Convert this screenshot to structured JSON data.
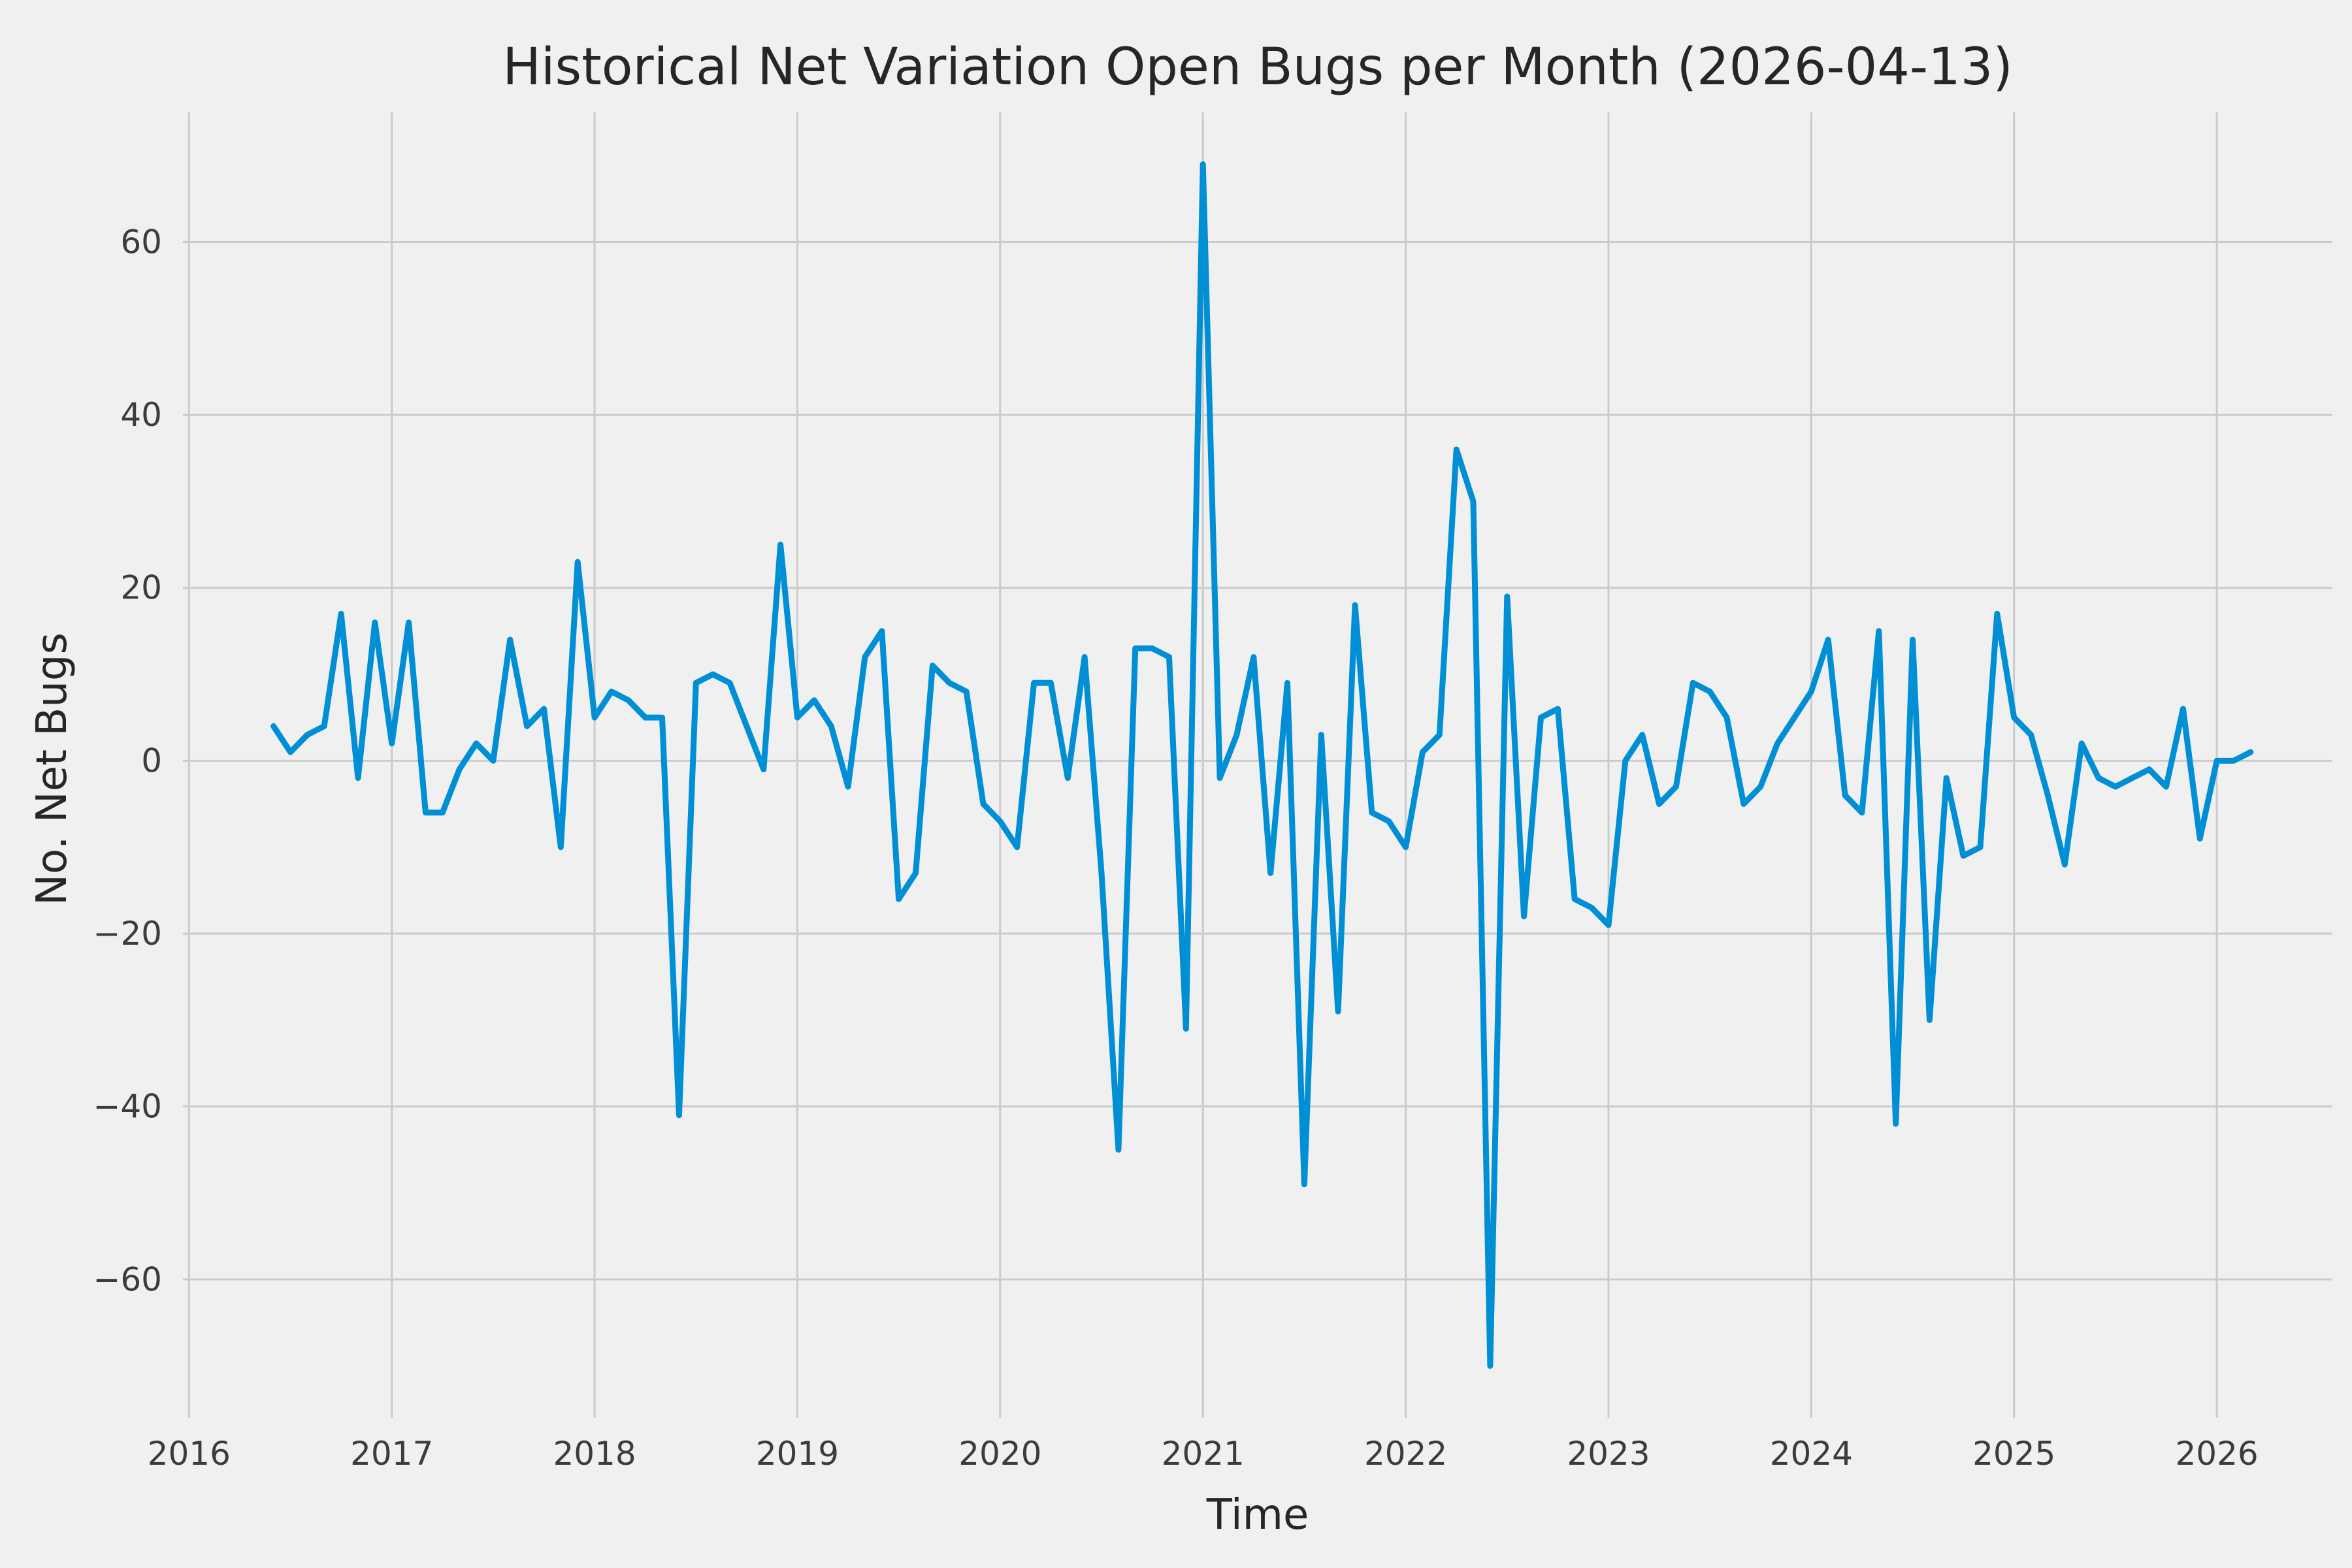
{
  "chart_data": {
    "type": "line",
    "title": "Historical Net Variation Open Bugs per Month (2026-04-13)",
    "xlabel": "Time",
    "ylabel": "No. Net Bugs",
    "x_start": {
      "year": 2016,
      "month": 6
    },
    "x_step_months": 1,
    "values": [
      4,
      1,
      3,
      4,
      17,
      -2,
      16,
      2,
      16,
      -6,
      -6,
      -1,
      2,
      0,
      14,
      4,
      6,
      -10,
      23,
      5,
      8,
      7,
      5,
      5,
      -41,
      9,
      10,
      9,
      4,
      -1,
      25,
      5,
      7,
      4,
      -3,
      12,
      15,
      -16,
      -13,
      11,
      9,
      8,
      -5,
      -7,
      -10,
      9,
      9,
      -2,
      12,
      -13,
      -45,
      13,
      13,
      12,
      -31,
      69,
      -2,
      3,
      12,
      -13,
      9,
      -49,
      3,
      -29,
      18,
      -6,
      -7,
      -10,
      1,
      3,
      36,
      30,
      -70,
      19,
      -18,
      5,
      6,
      -16,
      -17,
      -19,
      0,
      3,
      -5,
      -3,
      9,
      8,
      5,
      -5,
      -3,
      2,
      5,
      8,
      14,
      -4,
      -6,
      15,
      -42,
      14,
      -30,
      -2,
      -11,
      -10,
      17,
      5,
      3,
      -4,
      -12,
      2,
      -2,
      -3,
      -2,
      -1,
      -3,
      6,
      -9,
      0,
      0,
      1
    ],
    "x_ticks": [
      2016,
      2017,
      2018,
      2019,
      2020,
      2021,
      2022,
      2023,
      2024,
      2025,
      2026
    ],
    "y_ticks": [
      -60,
      -40,
      -20,
      0,
      20,
      40,
      60
    ],
    "xlim": [
      2015.97,
      2026.57
    ],
    "ylim": [
      -76,
      75
    ],
    "line_color": "#008fd5",
    "background_color": "#f0f0f0",
    "grid_color": "#cbcbcb",
    "tick_color": "#3c3c3c",
    "text_color": "#262626",
    "grid": true,
    "legend_position": "none"
  }
}
